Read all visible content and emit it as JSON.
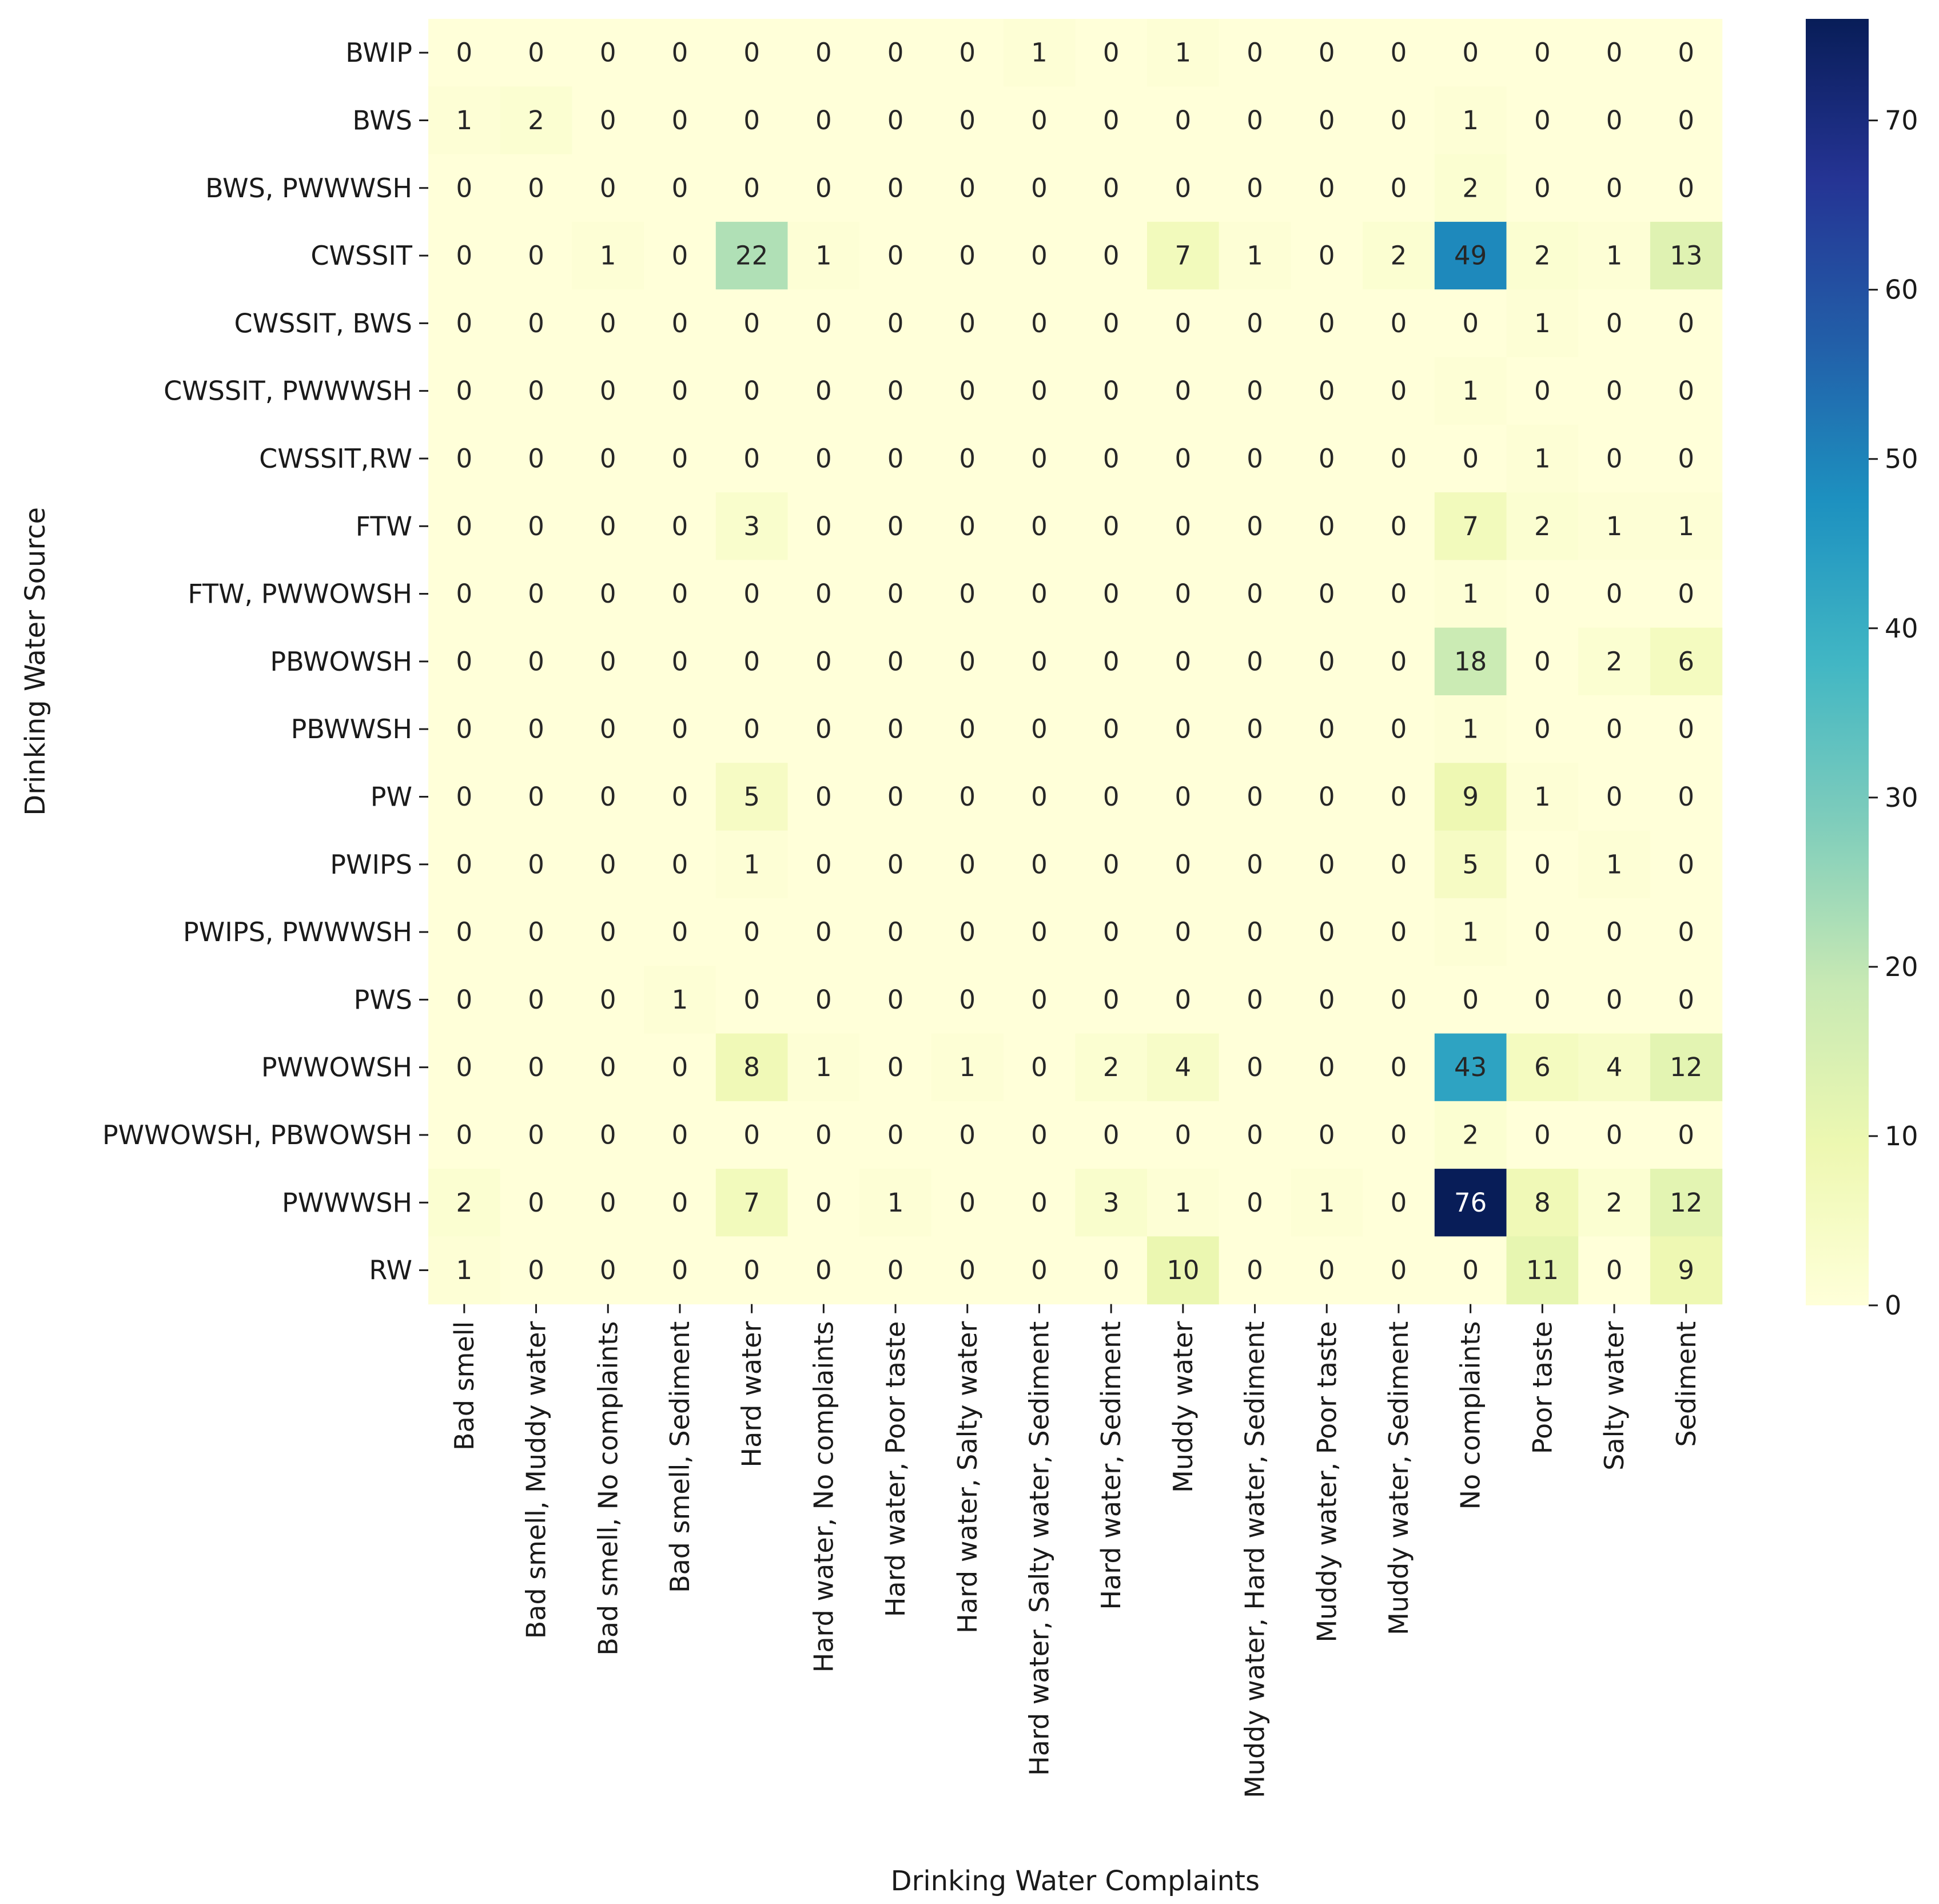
{
  "chart_data": {
    "type": "heatmap",
    "xlabel": "Drinking Water Complaints",
    "ylabel": "Drinking Water Source",
    "x_categories": [
      "Bad smell",
      "Bad smell, Muddy water",
      "Bad smell, No complaints",
      "Bad smell, Sediment",
      "Hard water",
      "Hard water, No complaints",
      "Hard water, Poor taste",
      "Hard water, Salty water",
      "Hard water, Salty water, Sediment",
      "Hard water, Sediment",
      "Muddy water",
      "Muddy water, Hard water, Sediment",
      "Muddy water, Poor taste",
      "Muddy water, Sediment",
      "No complaints",
      "Poor taste",
      "Salty water",
      "Sediment"
    ],
    "y_categories": [
      "BWIP",
      "BWS",
      "BWS, PWWWSH",
      "CWSSIT",
      "CWSSIT, BWS",
      "CWSSIT, PWWWSH",
      "CWSSIT,RW",
      "FTW",
      "FTW, PWWOWSH",
      "PBWOWSH",
      "PBWWSH",
      "PW",
      "PWIPS",
      "PWIPS, PWWWSH",
      "PWS",
      "PWWOWSH",
      "PWWOWSH, PBWOWSH",
      "PWWWSH",
      "RW"
    ],
    "values": [
      [
        0,
        0,
        0,
        0,
        0,
        0,
        0,
        0,
        1,
        0,
        1,
        0,
        0,
        0,
        0,
        0,
        0,
        0
      ],
      [
        1,
        2,
        0,
        0,
        0,
        0,
        0,
        0,
        0,
        0,
        0,
        0,
        0,
        0,
        1,
        0,
        0,
        0
      ],
      [
        0,
        0,
        0,
        0,
        0,
        0,
        0,
        0,
        0,
        0,
        0,
        0,
        0,
        0,
        2,
        0,
        0,
        0
      ],
      [
        0,
        0,
        1,
        0,
        22,
        1,
        0,
        0,
        0,
        0,
        7,
        1,
        0,
        2,
        49,
        2,
        1,
        13
      ],
      [
        0,
        0,
        0,
        0,
        0,
        0,
        0,
        0,
        0,
        0,
        0,
        0,
        0,
        0,
        0,
        1,
        0,
        0
      ],
      [
        0,
        0,
        0,
        0,
        0,
        0,
        0,
        0,
        0,
        0,
        0,
        0,
        0,
        0,
        1,
        0,
        0,
        0
      ],
      [
        0,
        0,
        0,
        0,
        0,
        0,
        0,
        0,
        0,
        0,
        0,
        0,
        0,
        0,
        0,
        1,
        0,
        0
      ],
      [
        0,
        0,
        0,
        0,
        3,
        0,
        0,
        0,
        0,
        0,
        0,
        0,
        0,
        0,
        7,
        2,
        1,
        1
      ],
      [
        0,
        0,
        0,
        0,
        0,
        0,
        0,
        0,
        0,
        0,
        0,
        0,
        0,
        0,
        1,
        0,
        0,
        0
      ],
      [
        0,
        0,
        0,
        0,
        0,
        0,
        0,
        0,
        0,
        0,
        0,
        0,
        0,
        0,
        18,
        0,
        2,
        6
      ],
      [
        0,
        0,
        0,
        0,
        0,
        0,
        0,
        0,
        0,
        0,
        0,
        0,
        0,
        0,
        1,
        0,
        0,
        0
      ],
      [
        0,
        0,
        0,
        0,
        5,
        0,
        0,
        0,
        0,
        0,
        0,
        0,
        0,
        0,
        9,
        1,
        0,
        0
      ],
      [
        0,
        0,
        0,
        0,
        1,
        0,
        0,
        0,
        0,
        0,
        0,
        0,
        0,
        0,
        5,
        0,
        1,
        0
      ],
      [
        0,
        0,
        0,
        0,
        0,
        0,
        0,
        0,
        0,
        0,
        0,
        0,
        0,
        0,
        1,
        0,
        0,
        0
      ],
      [
        0,
        0,
        0,
        1,
        0,
        0,
        0,
        0,
        0,
        0,
        0,
        0,
        0,
        0,
        0,
        0,
        0,
        0
      ],
      [
        0,
        0,
        0,
        0,
        8,
        1,
        0,
        1,
        0,
        2,
        4,
        0,
        0,
        0,
        43,
        6,
        4,
        12
      ],
      [
        0,
        0,
        0,
        0,
        0,
        0,
        0,
        0,
        0,
        0,
        0,
        0,
        0,
        0,
        2,
        0,
        0,
        0
      ],
      [
        2,
        0,
        0,
        0,
        7,
        0,
        1,
        0,
        0,
        3,
        1,
        0,
        1,
        0,
        76,
        8,
        2,
        12
      ],
      [
        1,
        0,
        0,
        0,
        0,
        0,
        0,
        0,
        0,
        0,
        10,
        0,
        0,
        0,
        0,
        11,
        0,
        9
      ]
    ],
    "colorbar": {
      "colormap": "YlGnBu",
      "range": [
        0,
        76
      ],
      "ticks": [
        0,
        10,
        20,
        30,
        40,
        50,
        60,
        70
      ]
    }
  }
}
